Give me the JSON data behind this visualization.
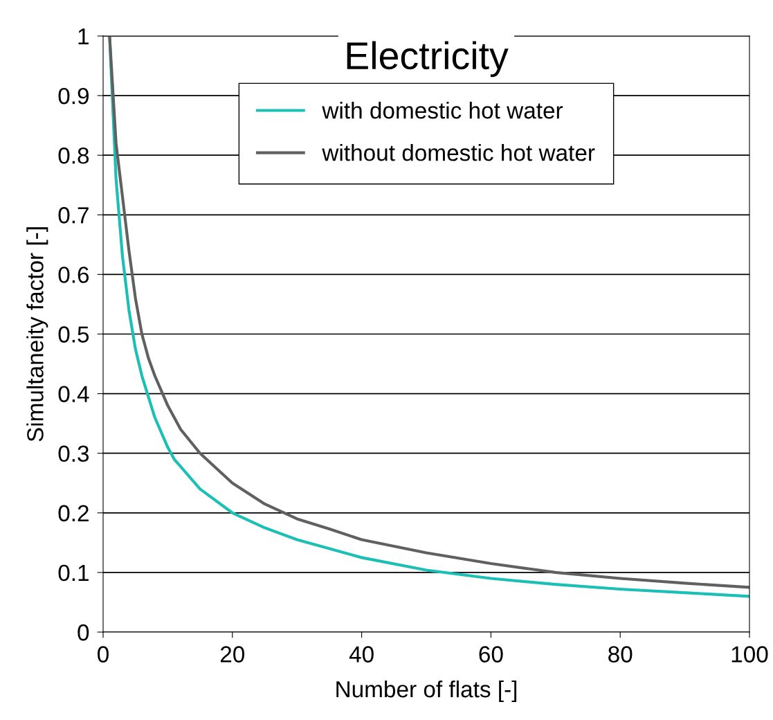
{
  "chart_data": {
    "type": "line",
    "title": "Electricity",
    "xlabel": "Number of flats [-]",
    "ylabel": "Simultaneity factor [-]",
    "xlim": [
      0,
      100
    ],
    "xticks": [
      0,
      20,
      40,
      60,
      80,
      100
    ],
    "ylim": [
      0,
      1
    ],
    "yticks": [
      0,
      0.1,
      0.2,
      0.3,
      0.4,
      0.5,
      0.6,
      0.7,
      0.8,
      0.9,
      1
    ],
    "grid": "y",
    "legend": "top",
    "marker": "none",
    "line_style": "solid",
    "series": [
      {
        "name": "with domestic hot water",
        "color": "#1bbfb5",
        "x": [
          1,
          2,
          3,
          4,
          5,
          6,
          8,
          10,
          11,
          15,
          20,
          25,
          30,
          40,
          50,
          60,
          70,
          80,
          90,
          100
        ],
        "values": [
          1,
          0.76,
          0.63,
          0.54,
          0.475,
          0.43,
          0.36,
          0.31,
          0.29,
          0.24,
          0.2,
          0.175,
          0.155,
          0.125,
          0.104,
          0.09,
          0.08,
          0.072,
          0.066,
          0.06
        ]
      },
      {
        "name": "without domestic hot water",
        "color": "#606060",
        "x": [
          1,
          2,
          3,
          4,
          5,
          6,
          7,
          8,
          10,
          12,
          15,
          17,
          20,
          25,
          30,
          35,
          40,
          50,
          60,
          70,
          80,
          90,
          100
        ],
        "values": [
          1,
          0.82,
          0.73,
          0.64,
          0.56,
          0.5,
          0.46,
          0.43,
          0.38,
          0.34,
          0.3,
          0.28,
          0.25,
          0.215,
          0.19,
          0.173,
          0.155,
          0.133,
          0.115,
          0.1,
          0.09,
          0.082,
          0.075
        ]
      }
    ]
  }
}
